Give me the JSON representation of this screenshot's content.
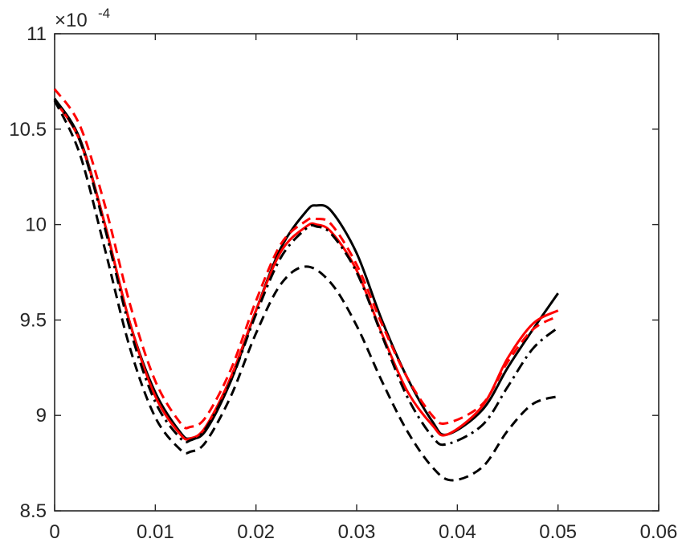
{
  "chart_data": {
    "type": "line",
    "title": "",
    "xlabel": "",
    "ylabel": "",
    "y_exponent_label": "×10",
    "y_exponent_power": "-4",
    "xlim": [
      0,
      0.06
    ],
    "ylim": [
      8.5,
      11
    ],
    "x_ticks": [
      0,
      0.01,
      0.02,
      0.03,
      0.04,
      0.05,
      0.06
    ],
    "x_tick_labels": [
      "0",
      "0.01",
      "0.02",
      "0.03",
      "0.04",
      "0.05",
      "0.06"
    ],
    "y_ticks": [
      8.5,
      9,
      9.5,
      10,
      10.5,
      11
    ],
    "y_tick_labels": [
      "8.5",
      "9",
      "9.5",
      "10",
      "10.5",
      "11"
    ],
    "grid": false,
    "legend": "none",
    "series": [
      {
        "color": "#000000",
        "dash": "solid",
        "x": [
          0,
          0.0025,
          0.005,
          0.0075,
          0.01,
          0.0125,
          0.0135,
          0.015,
          0.0175,
          0.02,
          0.0225,
          0.025,
          0.026,
          0.0275,
          0.03,
          0.0325,
          0.035,
          0.0375,
          0.039,
          0.0425,
          0.045,
          0.0475,
          0.05
        ],
        "y": [
          10.66,
          10.45,
          10.0,
          9.48,
          9.12,
          8.91,
          8.88,
          8.92,
          9.18,
          9.55,
          9.88,
          10.07,
          10.1,
          10.07,
          9.85,
          9.5,
          9.2,
          8.97,
          8.9,
          9.03,
          9.25,
          9.45,
          9.64
        ]
      },
      {
        "color": "#ff0000",
        "dash": "solid",
        "x": [
          0,
          0.0025,
          0.005,
          0.0075,
          0.01,
          0.0125,
          0.0135,
          0.015,
          0.0175,
          0.02,
          0.0225,
          0.025,
          0.026,
          0.0275,
          0.03,
          0.0325,
          0.035,
          0.0375,
          0.039,
          0.0425,
          0.045,
          0.0475,
          0.05
        ],
        "y": [
          10.65,
          10.44,
          10.0,
          9.48,
          9.1,
          8.9,
          8.88,
          8.94,
          9.2,
          9.55,
          9.86,
          9.99,
          10.0,
          9.96,
          9.76,
          9.43,
          9.13,
          8.95,
          8.9,
          9.05,
          9.3,
          9.48,
          9.55
        ]
      },
      {
        "color": "#ff0000",
        "dash": "dashed",
        "x": [
          0,
          0.0025,
          0.005,
          0.0075,
          0.01,
          0.0125,
          0.0135,
          0.015,
          0.0175,
          0.02,
          0.0225,
          0.025,
          0.026,
          0.0275,
          0.03,
          0.0325,
          0.035,
          0.0375,
          0.039,
          0.0425,
          0.045,
          0.0475,
          0.05
        ],
        "y": [
          10.71,
          10.52,
          10.1,
          9.58,
          9.18,
          8.96,
          8.94,
          8.99,
          9.24,
          9.6,
          9.9,
          10.02,
          10.03,
          10.0,
          9.79,
          9.48,
          9.2,
          9.0,
          8.96,
          9.06,
          9.28,
          9.45,
          9.52
        ]
      },
      {
        "color": "#000000",
        "dash": "dashdot",
        "x": [
          0,
          0.0025,
          0.005,
          0.0075,
          0.01,
          0.0125,
          0.0135,
          0.015,
          0.0175,
          0.02,
          0.0225,
          0.025,
          0.026,
          0.0275,
          0.03,
          0.0325,
          0.035,
          0.0375,
          0.039,
          0.0425,
          0.045,
          0.0475,
          0.05
        ],
        "y": [
          10.66,
          10.44,
          9.98,
          9.45,
          9.07,
          8.88,
          8.87,
          8.93,
          9.18,
          9.53,
          9.83,
          9.98,
          9.99,
          9.95,
          9.75,
          9.42,
          9.1,
          8.89,
          8.85,
          8.95,
          9.15,
          9.35,
          9.46
        ]
      },
      {
        "color": "#000000",
        "dash": "dashed",
        "x": [
          0,
          0.0025,
          0.005,
          0.0075,
          0.01,
          0.0125,
          0.0135,
          0.015,
          0.0175,
          0.02,
          0.0225,
          0.025,
          0.0275,
          0.03,
          0.0325,
          0.035,
          0.0375,
          0.0395,
          0.0425,
          0.045,
          0.0475,
          0.05
        ],
        "y": [
          10.65,
          10.37,
          9.87,
          9.35,
          8.99,
          8.82,
          8.81,
          8.86,
          9.1,
          9.43,
          9.69,
          9.78,
          9.69,
          9.47,
          9.18,
          8.92,
          8.73,
          8.66,
          8.73,
          8.92,
          9.06,
          9.1
        ]
      }
    ]
  }
}
